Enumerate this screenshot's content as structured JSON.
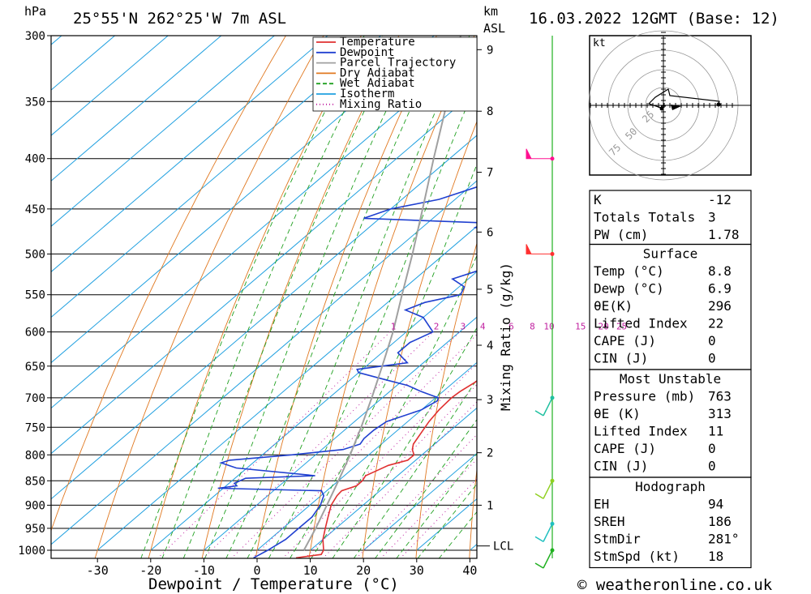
{
  "header": {
    "location": "25°55'N 262°25'W 7m ASL",
    "pressure_unit": "hPa",
    "height_unit": "km",
    "height_unit_sub": "ASL",
    "datetime": "16.03.2022 12GMT (Base: 12)"
  },
  "footer": {
    "xlabel": "Dewpoint / Temperature (°C)",
    "copyright": "© weatheronline.co.uk"
  },
  "legend": [
    {
      "label": "Temperature",
      "color": "#e03030"
    },
    {
      "label": "Dewpoint",
      "color": "#2040d0"
    },
    {
      "label": "Parcel Trajectory",
      "color": "#a0a0a0"
    },
    {
      "label": "Dry Adiabat",
      "color": "#e07820"
    },
    {
      "label": "Wet Adiabat",
      "color": "#20a020"
    },
    {
      "label": "Isotherm",
      "color": "#20a0e0"
    },
    {
      "label": "Mixing Ratio",
      "color": "#c020a0"
    }
  ],
  "hodograph": {
    "unit": "kt",
    "rings": [
      "25",
      "50",
      "75"
    ]
  },
  "indices": {
    "general": [
      {
        "label": "K",
        "value": "-12"
      },
      {
        "label": "Totals Totals",
        "value": "3"
      },
      {
        "label": "PW (cm)",
        "value": "1.78"
      }
    ],
    "surface": {
      "title": "Surface",
      "rows": [
        {
          "label": "Temp (°C)",
          "value": "8.8"
        },
        {
          "label": "Dewp (°C)",
          "value": "6.9"
        },
        {
          "label": "θE(K)",
          "value": "296"
        },
        {
          "label": "Lifted Index",
          "value": "22"
        },
        {
          "label": "CAPE (J)",
          "value": "0"
        },
        {
          "label": "CIN (J)",
          "value": "0"
        }
      ]
    },
    "most_unstable": {
      "title": "Most Unstable",
      "rows": [
        {
          "label": "Pressure (mb)",
          "value": "763"
        },
        {
          "label": "θE (K)",
          "value": "313"
        },
        {
          "label": "Lifted Index",
          "value": "11"
        },
        {
          "label": "CAPE (J)",
          "value": "0"
        },
        {
          "label": "CIN (J)",
          "value": "0"
        }
      ]
    },
    "hodograph": {
      "title": "Hodograph",
      "rows": [
        {
          "label": "EH",
          "value": "94"
        },
        {
          "label": "SREH",
          "value": "186"
        },
        {
          "label": "StmDir",
          "value": "281°"
        },
        {
          "label": "StmSpd (kt)",
          "value": "18"
        }
      ]
    }
  },
  "chart_data": {
    "type": "line",
    "title": "25°55'N 262°25'W 7m ASL",
    "xlabel": "Dewpoint / Temperature (°C)",
    "ylabel": "hPa",
    "y2label": "Mixing Ratio (g/kg)",
    "xlim": [
      -40,
      40
    ],
    "ylim": [
      1000,
      300
    ],
    "y_log_scale": true,
    "skew": "skew-T",
    "x_ticks": [
      -30,
      -20,
      -10,
      0,
      10,
      20,
      30,
      40
    ],
    "pressure_ticks": [
      300,
      350,
      400,
      450,
      500,
      550,
      600,
      650,
      700,
      750,
      800,
      850,
      900,
      950,
      1000
    ],
    "height_ticks": [
      {
        "km": "1",
        "p": 900
      },
      {
        "km": "2",
        "p": 796
      },
      {
        "km": "3",
        "p": 703
      },
      {
        "km": "4",
        "p": 619
      },
      {
        "km": "5",
        "p": 543
      },
      {
        "km": "6",
        "p": 475
      },
      {
        "km": "7",
        "p": 413
      },
      {
        "km": "8",
        "p": 358
      },
      {
        "km": "9",
        "p": 310
      }
    ],
    "lcl_label": "LCL",
    "lcl_pressure": 990,
    "mixing_ratio_labels": [
      "1",
      "2",
      "3",
      "4",
      "6",
      "8",
      "10",
      "15",
      "20",
      "25"
    ],
    "mixing_ratio_label_pressure": 600,
    "grid": true,
    "legend_position": "top-right",
    "series": [
      {
        "name": "Temperature",
        "color": "#e03030",
        "points": [
          [
            1018,
            9
          ],
          [
            1010,
            13
          ],
          [
            1000,
            12.5
          ],
          [
            975,
            10
          ],
          [
            950,
            8
          ],
          [
            925,
            6
          ],
          [
            900,
            4
          ],
          [
            880,
            3
          ],
          [
            870,
            2.8
          ],
          [
            860,
            4.5
          ],
          [
            850,
            4.5
          ],
          [
            840,
            4
          ],
          [
            830,
            5
          ],
          [
            820,
            6
          ],
          [
            810,
            8.5
          ],
          [
            800,
            8.5
          ],
          [
            790,
            7
          ],
          [
            780,
            6
          ],
          [
            760,
            5
          ],
          [
            740,
            4
          ],
          [
            720,
            3.3
          ],
          [
            700,
            3
          ],
          [
            690,
            3.2
          ],
          [
            675,
            4
          ],
          [
            660,
            4.3
          ],
          [
            650,
            4
          ],
          [
            630,
            2
          ],
          [
            600,
            -0.5
          ],
          [
            580,
            -2
          ],
          [
            560,
            -3.5
          ],
          [
            540,
            -5
          ],
          [
            520,
            -7
          ],
          [
            500,
            -9
          ],
          [
            485,
            -10.3
          ],
          [
            475,
            -11
          ],
          [
            465,
            -11.3
          ],
          [
            455,
            -12.5
          ],
          [
            445,
            -14
          ],
          [
            430,
            -16
          ],
          [
            415,
            -18
          ],
          [
            400,
            -20
          ],
          [
            390,
            -22
          ],
          [
            380,
            -24
          ],
          [
            370,
            -25.5
          ],
          [
            355,
            -27.5
          ],
          [
            340,
            -30
          ],
          [
            325,
            -33
          ],
          [
            310,
            -36
          ],
          [
            300,
            -38
          ]
        ]
      },
      {
        "name": "Dewpoint",
        "color": "#2040d0",
        "points": [
          [
            1018,
            1
          ],
          [
            1000,
            2
          ],
          [
            975,
            3
          ],
          [
            950,
            3
          ],
          [
            925,
            3
          ],
          [
            900,
            2
          ],
          [
            880,
            0.5
          ],
          [
            870,
            -1
          ],
          [
            865,
            -21
          ],
          [
            860,
            -18
          ],
          [
            855,
            -19
          ],
          [
            845,
            -18
          ],
          [
            840,
            -5.5
          ],
          [
            825,
            -22
          ],
          [
            815,
            -26
          ],
          [
            810,
            -25
          ],
          [
            800,
            -14.5
          ],
          [
            790,
            -6
          ],
          [
            780,
            -4
          ],
          [
            770,
            -4.5
          ],
          [
            755,
            -4.5
          ],
          [
            740,
            -4
          ],
          [
            720,
            0
          ],
          [
            705,
            1
          ],
          [
            700,
            0.5
          ],
          [
            690,
            -4
          ],
          [
            680,
            -8
          ],
          [
            670,
            -14
          ],
          [
            660,
            -20
          ],
          [
            655,
            -21
          ],
          [
            645,
            -13
          ],
          [
            630,
            -17
          ],
          [
            615,
            -17
          ],
          [
            600,
            -15
          ],
          [
            580,
            -20
          ],
          [
            570,
            -25
          ],
          [
            560,
            -23
          ],
          [
            550,
            -18
          ],
          [
            540,
            -19
          ],
          [
            530,
            -23
          ],
          [
            520,
            -20
          ],
          [
            510,
            -18
          ],
          [
            500,
            -18
          ],
          [
            490,
            -18
          ],
          [
            483,
            -23
          ],
          [
            475,
            -25
          ],
          [
            470,
            -30
          ],
          [
            465,
            -29
          ],
          [
            460,
            -53
          ],
          [
            450,
            -50
          ],
          [
            440,
            -43
          ],
          [
            420,
            -36
          ],
          [
            405,
            -28
          ],
          [
            395,
            -26
          ],
          [
            385,
            -28
          ],
          [
            380,
            -24
          ],
          [
            375,
            -30
          ],
          [
            360,
            -35
          ],
          [
            345,
            -38
          ],
          [
            340,
            -39.5
          ],
          [
            335,
            -38
          ],
          [
            330,
            -40
          ],
          [
            320,
            -39
          ],
          [
            313,
            -36
          ],
          [
            310,
            -38
          ],
          [
            300,
            -38
          ]
        ]
      },
      {
        "name": "Parcel Trajectory",
        "color": "#a0a0a0",
        "points": [
          [
            1000,
            8.8
          ],
          [
            950,
            6.2
          ],
          [
            900,
            3.2
          ],
          [
            850,
            0
          ],
          [
            800,
            -3.5
          ],
          [
            750,
            -7.5
          ],
          [
            700,
            -12
          ],
          [
            650,
            -17
          ],
          [
            600,
            -22.5
          ],
          [
            550,
            -29
          ],
          [
            500,
            -36
          ],
          [
            450,
            -44
          ],
          [
            400,
            -53
          ],
          [
            350,
            -63
          ],
          [
            300,
            -75
          ]
        ]
      }
    ],
    "wind_barbs": [
      {
        "pressure": 1000,
        "speed_kt": 15,
        "color": "#20b020"
      },
      {
        "pressure": 940,
        "speed_kt": 10,
        "color": "#20c0c0"
      },
      {
        "pressure": 850,
        "speed_kt": 10,
        "color": "#90d020"
      },
      {
        "pressure": 700,
        "speed_kt": 10,
        "color": "#20c0a0"
      },
      {
        "pressure": 500,
        "speed_kt": 50,
        "color": "#ff3030"
      },
      {
        "pressure": 400,
        "speed_kt": 50,
        "color": "#ff1090"
      }
    ]
  }
}
